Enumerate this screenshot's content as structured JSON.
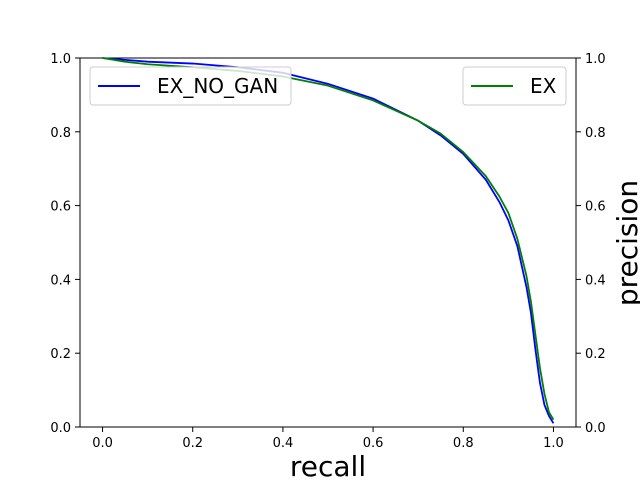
{
  "chart_data": {
    "type": "line",
    "xlabel": "recall",
    "ylabel": "precision",
    "xlim": [
      -0.05,
      1.05
    ],
    "ylim": [
      0.0,
      1.0
    ],
    "xticks": [
      "0.0",
      "0.2",
      "0.4",
      "0.6",
      "0.8",
      "1.0"
    ],
    "yticks": [
      "0.0",
      "0.2",
      "0.4",
      "0.6",
      "0.8",
      "1.0"
    ],
    "ylabel_side": "right",
    "yticks_both_sides": true,
    "grid": false,
    "series": [
      {
        "name": "EX_NO_GAN",
        "color": "#0000ff",
        "legend_position": "upper-left",
        "x": [
          0.0,
          0.05,
          0.1,
          0.2,
          0.3,
          0.4,
          0.5,
          0.6,
          0.7,
          0.75,
          0.8,
          0.85,
          0.88,
          0.9,
          0.92,
          0.94,
          0.95,
          0.96,
          0.97,
          0.98,
          0.99,
          1.0
        ],
        "y": [
          1.0,
          0.995,
          0.99,
          0.985,
          0.975,
          0.96,
          0.93,
          0.89,
          0.83,
          0.79,
          0.74,
          0.67,
          0.61,
          0.56,
          0.49,
          0.38,
          0.31,
          0.21,
          0.12,
          0.06,
          0.03,
          0.01
        ]
      },
      {
        "name": "EX",
        "color": "#008000",
        "legend_position": "upper-right",
        "x": [
          0.0,
          0.05,
          0.1,
          0.2,
          0.3,
          0.4,
          0.5,
          0.6,
          0.7,
          0.75,
          0.8,
          0.85,
          0.88,
          0.9,
          0.92,
          0.94,
          0.95,
          0.96,
          0.97,
          0.98,
          0.99,
          1.0
        ],
        "y": [
          1.0,
          0.99,
          0.983,
          0.975,
          0.965,
          0.95,
          0.925,
          0.885,
          0.83,
          0.795,
          0.745,
          0.68,
          0.625,
          0.58,
          0.51,
          0.41,
          0.34,
          0.25,
          0.16,
          0.09,
          0.04,
          0.02
        ]
      }
    ]
  }
}
